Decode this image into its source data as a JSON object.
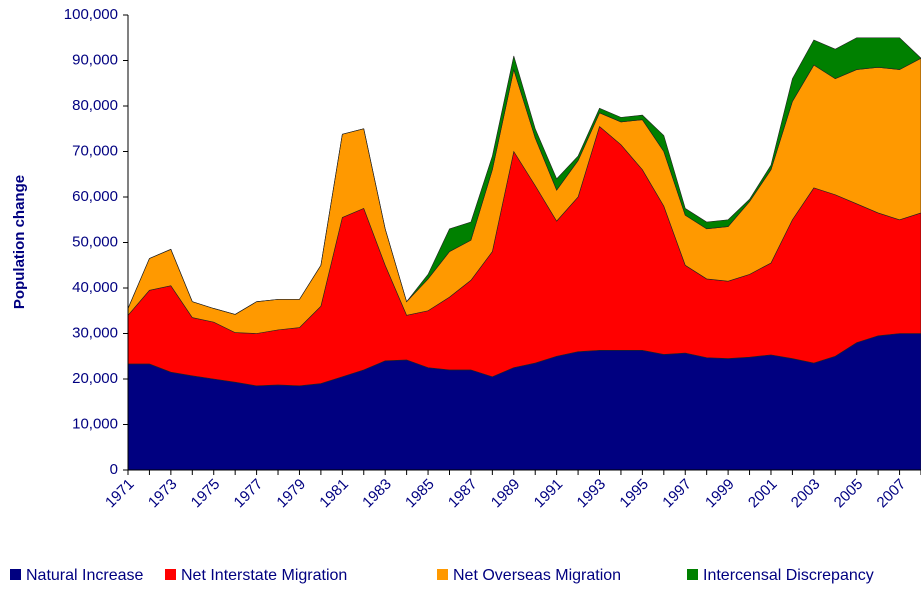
{
  "chart_data": {
    "type": "stacked_area",
    "y_label": "Population change",
    "categories": [
      "1971",
      null,
      "1973",
      null,
      "1975",
      null,
      "1977",
      null,
      "1979",
      null,
      "1981",
      null,
      "1983",
      null,
      "1985",
      null,
      "1987",
      null,
      "1989",
      null,
      "1991",
      null,
      "1993",
      null,
      "1995",
      null,
      "1997",
      null,
      "1999",
      null,
      "2001",
      null,
      "2003",
      null,
      "2005",
      null,
      "2007",
      null
    ],
    "ylim": [
      0,
      100000
    ],
    "yticks": [
      {
        "value": 0,
        "label": "0"
      },
      {
        "value": 10000,
        "label": "10,000"
      },
      {
        "value": 20000,
        "label": "20,000"
      },
      {
        "value": 30000,
        "label": "30,000"
      },
      {
        "value": 40000,
        "label": "40,000"
      },
      {
        "value": 50000,
        "label": "50,000"
      },
      {
        "value": 60000,
        "label": "60,000"
      },
      {
        "value": 70000,
        "label": "70,000"
      },
      {
        "value": 80000,
        "label": "80,000"
      },
      {
        "value": 90000,
        "label": "90,000"
      },
      {
        "value": 100000,
        "label": "100,000"
      }
    ],
    "series": [
      {
        "name": "Natural Increase",
        "color": "#000080",
        "values": [
          23300,
          23300,
          21500,
          20700,
          20000,
          19300,
          18500,
          18700,
          18500,
          19000,
          20500,
          22000,
          24000,
          24200,
          22500,
          22000,
          22000,
          20500,
          22500,
          23500,
          25000,
          26000,
          26300,
          26300,
          26300,
          25400,
          25700,
          24700,
          24500,
          24800,
          25300,
          24500,
          23500,
          25000,
          28000,
          29500,
          30000,
          30000
        ]
      },
      {
        "name": "Net Interstate Migration",
        "color": "#ff0000",
        "values": [
          10700,
          16200,
          19000,
          12800,
          12500,
          10900,
          11500,
          12100,
          12800,
          17000,
          35000,
          35500,
          21000,
          9800,
          12500,
          16000,
          19700,
          27500,
          47500,
          39000,
          29700,
          34000,
          49200,
          45200,
          39700,
          32600,
          19300,
          17300,
          17000,
          18200,
          20200,
          30500,
          38500,
          35500,
          30500,
          27000,
          25000,
          26500
        ]
      },
      {
        "name": "Net Overseas Migration",
        "color": "#ff9900",
        "values": [
          1500,
          7000,
          8000,
          3500,
          3000,
          4000,
          7000,
          6700,
          6200,
          9000,
          18300,
          17500,
          8000,
          3000,
          7000,
          10000,
          8800,
          18000,
          18000,
          10500,
          6800,
          8000,
          3000,
          5000,
          11000,
          12000,
          11000,
          11000,
          12000,
          16000,
          20500,
          26000,
          27000,
          25500,
          29500,
          32000,
          33000,
          34000
        ]
      },
      {
        "name": "Intercensal Discrepancy",
        "color": "#008000",
        "values": [
          0,
          0,
          0,
          0,
          0,
          0,
          0,
          0,
          0,
          0,
          0,
          0,
          0,
          0,
          1000,
          5000,
          4000,
          3000,
          3000,
          2000,
          2500,
          1000,
          1000,
          1000,
          1000,
          3500,
          1500,
          1500,
          1500,
          500,
          1000,
          5000,
          5500,
          6500,
          7000,
          6500,
          7000,
          0
        ]
      }
    ]
  }
}
